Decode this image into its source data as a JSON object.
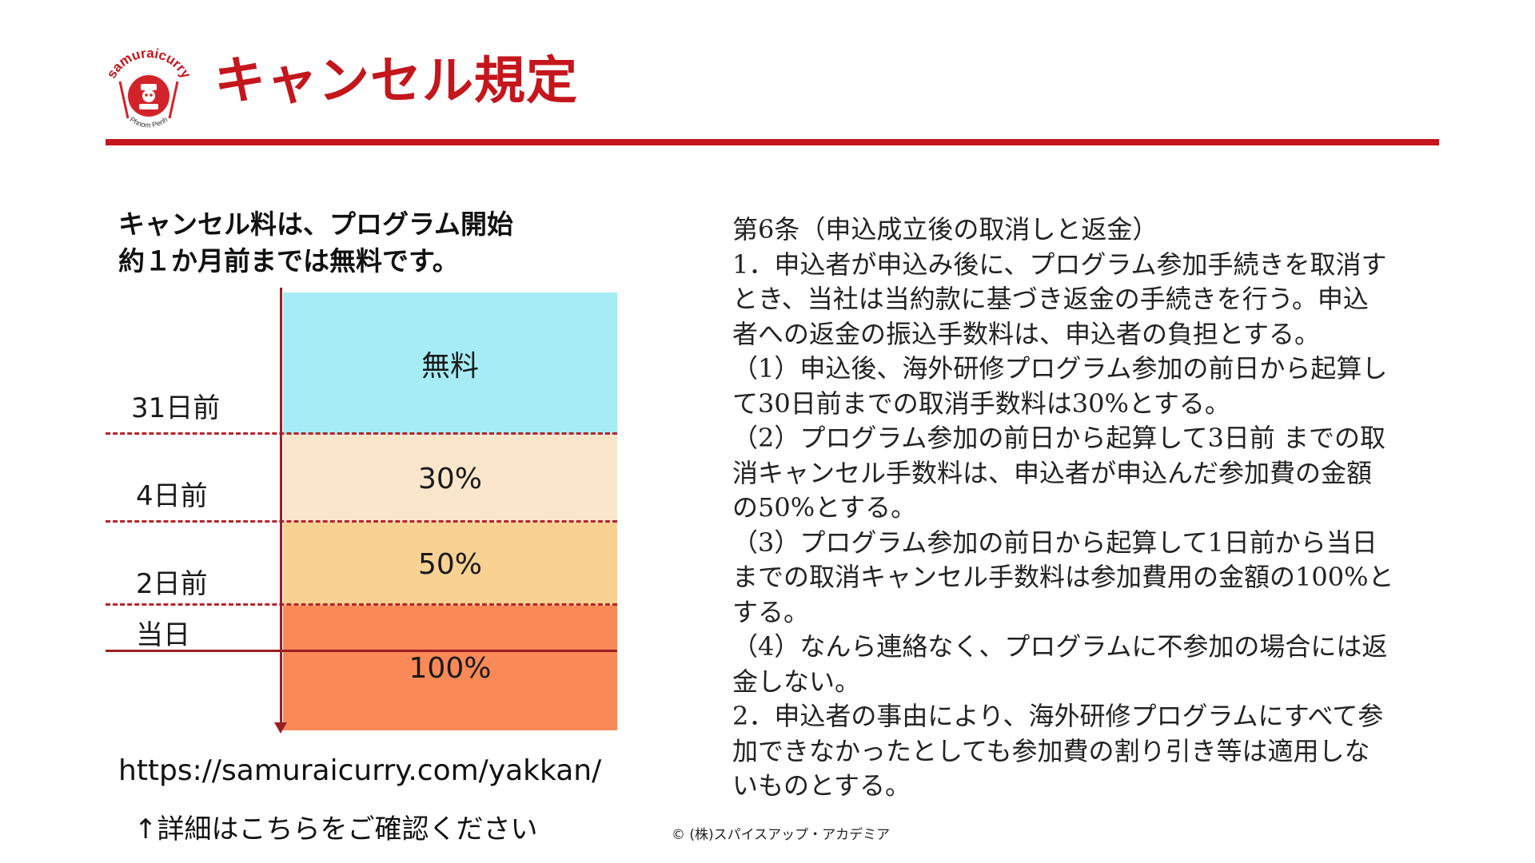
{
  "header": {
    "title": "キャンセル規定",
    "logo": {
      "brand": "samuraicurry",
      "location": "Phnom Penh"
    }
  },
  "intro": {
    "line1": "キャンセル料は、プログラム開始",
    "line2": "約１か月前までは無料です。"
  },
  "fee_diagram": {
    "bands": [
      {
        "label": "無料",
        "color": "#a6ecf5"
      },
      {
        "label": "30%",
        "color": "#fbe6cc"
      },
      {
        "label": "50%",
        "color": "#f9d193"
      },
      {
        "label": "100%",
        "color": "#f98a58"
      }
    ],
    "day_labels": [
      "31日前",
      "4日前",
      "2日前",
      "当日"
    ]
  },
  "link": {
    "url": "https://samuraicurry.com/yakkan/",
    "note": "↑詳細はこちらをご確認ください"
  },
  "terms": {
    "lines": [
      "第6条（申込成立後の取消しと返金）",
      "1．申込者が申込み後に、プログラム参加手続きを取消す",
      "とき、当社は当約款に基づき返金の手続きを行う。申込",
      "者への返金の振込手数料は、申込者の負担とする。",
      "（1）申込後、海外研修プログラム参加の前日から起算し",
      "て30日前までの取消手数料は30%とする。",
      "（2）プログラム参加の前日から起算して3日前 までの取",
      "消キャンセル手数料は、申込者が申込んだ参加費の金額",
      "の50%とする。",
      "（3）プログラム参加の前日から起算して1日前から当日",
      "までの取消キャンセル手数料は参加費用の金額の100%と",
      "する。",
      "（4）なんら連絡なく、プログラムに不参加の場合には返",
      "金しない。",
      "2．申込者の事由により、海外研修プログラムにすべて参",
      "加できなかったとしても参加費の割り引き等は適用しな",
      "いものとする。"
    ]
  },
  "footer": {
    "copyright": "© (株)スパイスアップ・アカデミア"
  },
  "colors": {
    "brand_red": "#c4161c"
  }
}
